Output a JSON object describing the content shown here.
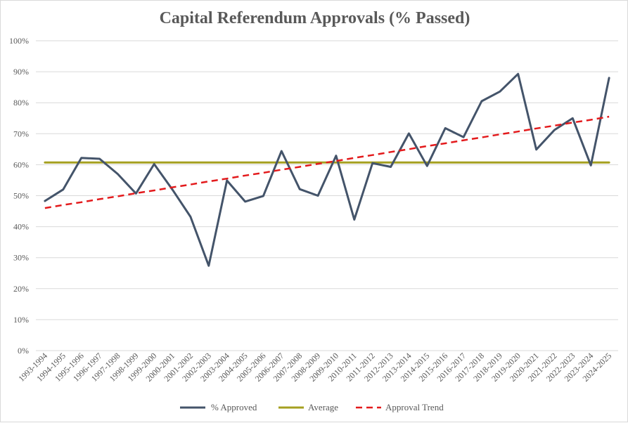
{
  "chart_data": {
    "type": "line",
    "title": "Capital Referendum Approvals (% Passed)",
    "xlabel": "",
    "ylabel": "",
    "ylim": [
      0,
      100
    ],
    "yticks": [
      "0%",
      "10%",
      "20%",
      "30%",
      "40%",
      "50%",
      "60%",
      "70%",
      "80%",
      "90%",
      "100%"
    ],
    "grid": true,
    "legend_position": "bottom",
    "categories": [
      "1993-1994",
      "1994-1995",
      "1995-1996",
      "1996-1997",
      "1997-1998",
      "1998-1999",
      "1999-2000",
      "2000-2001",
      "2001-2002",
      "2002-2003",
      "2003-2004",
      "2004-2005",
      "2005-2006",
      "2006-2007",
      "2007-2008",
      "2008-2009",
      "2009-2010",
      "2010-2011",
      "2011-2012",
      "2012-2013",
      "2013-2014",
      "2014-2015",
      "2015-2016",
      "2016-2017",
      "2017-2018",
      "2018-2019",
      "2019-2020",
      "2020-2021",
      "2021-2022",
      "2022-2023",
      "2023-2024",
      "2024-2025"
    ],
    "series": [
      {
        "name": "% Approved",
        "style": "solid",
        "color": "#44546A",
        "values": [
          48.3,
          52.0,
          62.2,
          61.9,
          57.0,
          50.7,
          60.2,
          52.0,
          43.2,
          27.4,
          54.9,
          48.1,
          49.9,
          64.4,
          52.1,
          50.0,
          62.9,
          42.3,
          60.5,
          59.3,
          70.1,
          59.6,
          71.8,
          68.9,
          80.5,
          83.6,
          89.3,
          64.9,
          71.2,
          75.0,
          59.8,
          88.0
        ]
      },
      {
        "name": "Average",
        "style": "solid",
        "color": "#A5A020",
        "values": [
          60.7,
          60.7,
          60.7,
          60.7,
          60.7,
          60.7,
          60.7,
          60.7,
          60.7,
          60.7,
          60.7,
          60.7,
          60.7,
          60.7,
          60.7,
          60.7,
          60.7,
          60.7,
          60.7,
          60.7,
          60.7,
          60.7,
          60.7,
          60.7,
          60.7,
          60.7,
          60.7,
          60.7,
          60.7,
          60.7,
          60.7,
          60.7
        ]
      },
      {
        "name": "Approval Trend",
        "style": "dashed",
        "color": "#E31A1C",
        "values": [
          46.0,
          47.0,
          47.9,
          48.9,
          49.8,
          50.8,
          51.7,
          52.7,
          53.6,
          54.6,
          55.5,
          56.5,
          57.4,
          58.4,
          59.3,
          60.3,
          61.2,
          62.2,
          63.1,
          64.1,
          65.0,
          66.0,
          66.9,
          67.9,
          68.8,
          69.8,
          70.7,
          71.7,
          72.6,
          73.6,
          74.5,
          75.5
        ]
      }
    ]
  }
}
